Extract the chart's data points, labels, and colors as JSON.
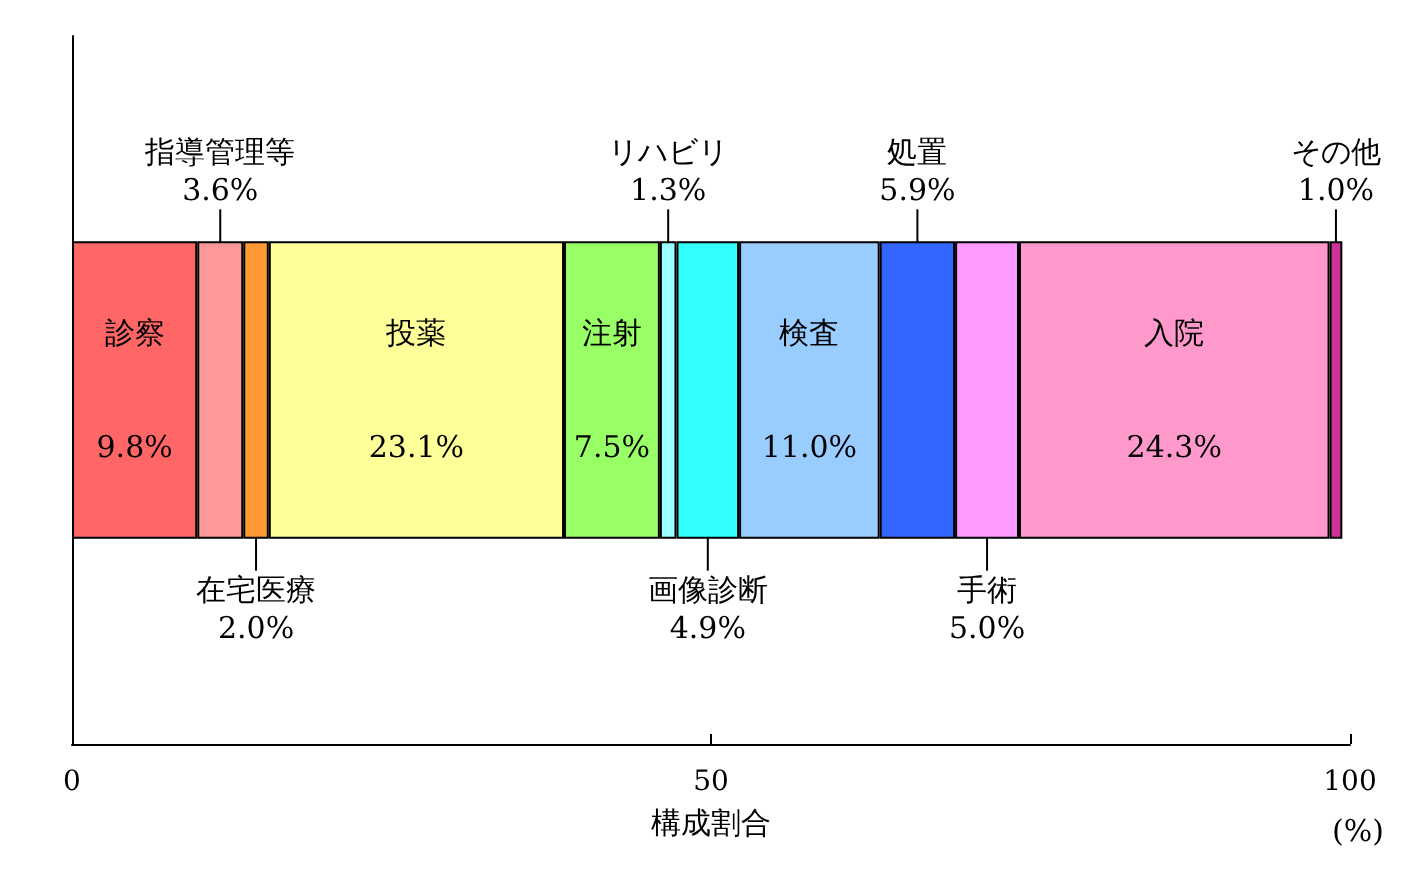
{
  "chart_data": {
    "type": "bar",
    "orientation": "horizontal",
    "stacked": true,
    "categories": [
      null
    ],
    "xlim": [
      0,
      100
    ],
    "xticks": [
      0,
      50,
      100
    ],
    "xlabel": "構成割合",
    "annotations": [
      "(%)"
    ],
    "legend": false,
    "grid": false,
    "series": [
      {
        "name": "診察",
        "color": "#ff6666",
        "values": [
          9.8
        ],
        "value_labels": [
          "9.8%"
        ]
      },
      {
        "name": "指導管理等",
        "color": "#ff9999",
        "values": [
          3.6
        ],
        "value_labels": [
          "3.6%"
        ]
      },
      {
        "name": "在宅医療",
        "color": "#ff9933",
        "values": [
          2.0
        ],
        "value_labels": [
          "2.0%"
        ]
      },
      {
        "name": "投薬",
        "color": "#ffff99",
        "values": [
          23.1
        ],
        "value_labels": [
          "23.1%"
        ]
      },
      {
        "name": "注射",
        "color": "#99ff66",
        "values": [
          7.5
        ],
        "value_labels": [
          "7.5%"
        ]
      },
      {
        "name": "リハビリ",
        "color": "#99ffff",
        "values": [
          1.3
        ],
        "value_labels": [
          "1.3%"
        ]
      },
      {
        "name": "画像診断",
        "color": "#33ffff",
        "values": [
          4.9
        ],
        "value_labels": [
          "4.9%"
        ]
      },
      {
        "name": "検査",
        "color": "#99ccff",
        "values": [
          11.0
        ],
        "value_labels": [
          "11.0%"
        ]
      },
      {
        "name": "処置",
        "color": "#3366ff",
        "values": [
          5.9
        ],
        "value_labels": [
          "5.9%"
        ]
      },
      {
        "name": "手術",
        "color": "#ff99ff",
        "values": [
          5.0
        ],
        "value_labels": [
          "5.0%"
        ]
      },
      {
        "name": "入院",
        "color": "#ff99cc",
        "values": [
          24.3
        ],
        "value_labels": [
          "24.3%"
        ]
      },
      {
        "name": "その他",
        "color": "#cc3399",
        "values": [
          1.0
        ],
        "value_labels": [
          "1.0%"
        ]
      }
    ]
  }
}
